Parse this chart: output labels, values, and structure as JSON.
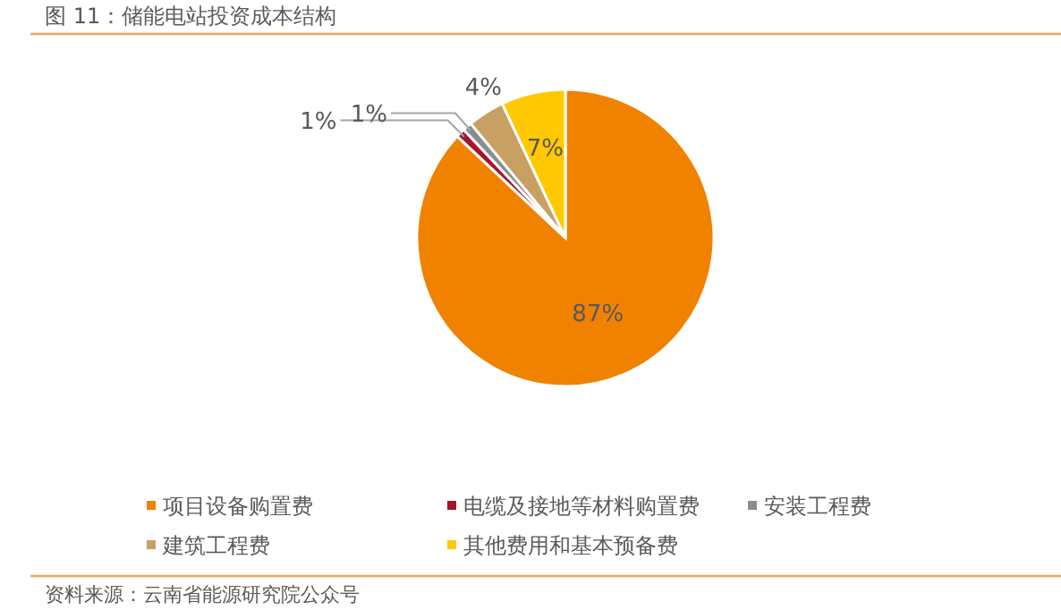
{
  "chart_data": {
    "type": "pie",
    "title": "图 11：储能电站投资成本结构",
    "categories": [
      "项目设备购置费",
      "电缆及接地等材料购置费",
      "安装工程费",
      "建筑工程费",
      "其他费用和基本预备费"
    ],
    "values": [
      87,
      1,
      1,
      4,
      7
    ],
    "colors": [
      "#f08200",
      "#a5142c",
      "#8c8c8c",
      "#c8a064",
      "#ffc800"
    ],
    "value_labels": [
      "87%",
      "1%",
      "1%",
      "4%",
      "7%"
    ],
    "legend": "bottom",
    "annotations": [
      "资料来源：云南省能源研究院公众号"
    ]
  }
}
